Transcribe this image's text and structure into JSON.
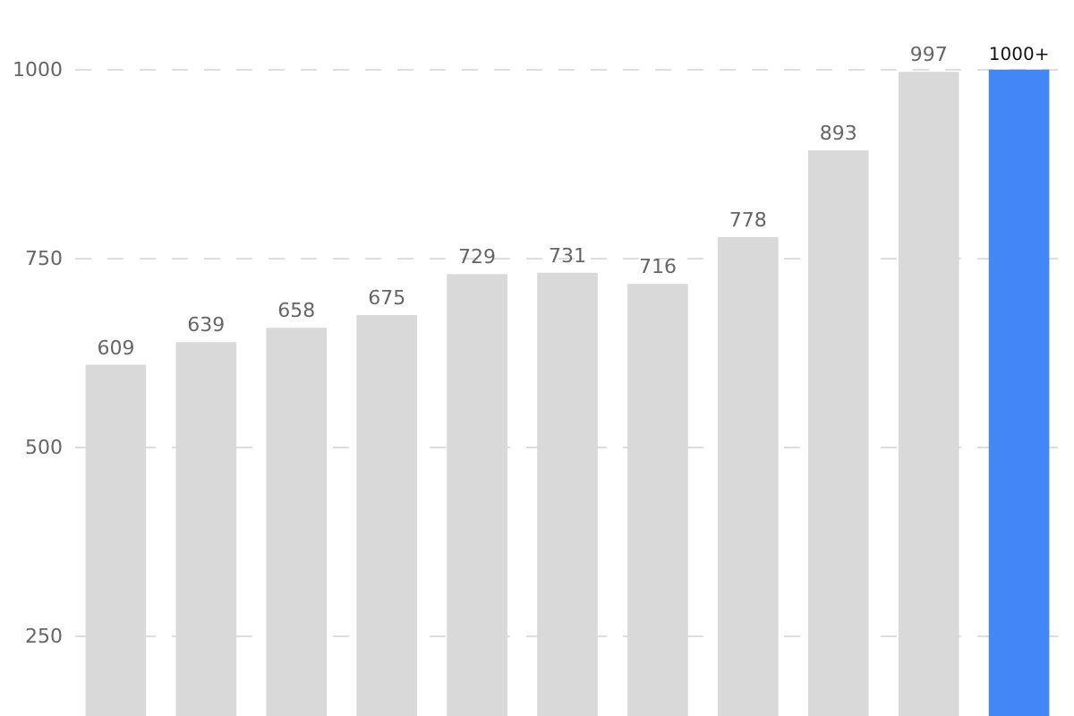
{
  "chart_data": {
    "type": "bar",
    "categories": [
      null,
      null,
      null,
      null,
      null,
      null,
      null,
      null,
      null,
      null,
      null
    ],
    "values": [
      609,
      639,
      658,
      675,
      729,
      731,
      716,
      778,
      893,
      997,
      1000
    ],
    "colors": [
      "#d9d9d9",
      "#d9d9d9",
      "#d9d9d9",
      "#d9d9d9",
      "#d9d9d9",
      "#d9d9d9",
      "#d9d9d9",
      "#d9d9d9",
      "#d9d9d9",
      "#d9d9d9",
      "#4287f5"
    ],
    "value_labels": [
      "609",
      "639",
      "658",
      "675",
      "729",
      "731",
      "716",
      "778",
      "893",
      "997",
      "1000+"
    ],
    "ylim": [
      144,
      1092
    ],
    "yticks": [
      250,
      500,
      750,
      1000
    ],
    "grid": "y"
  }
}
